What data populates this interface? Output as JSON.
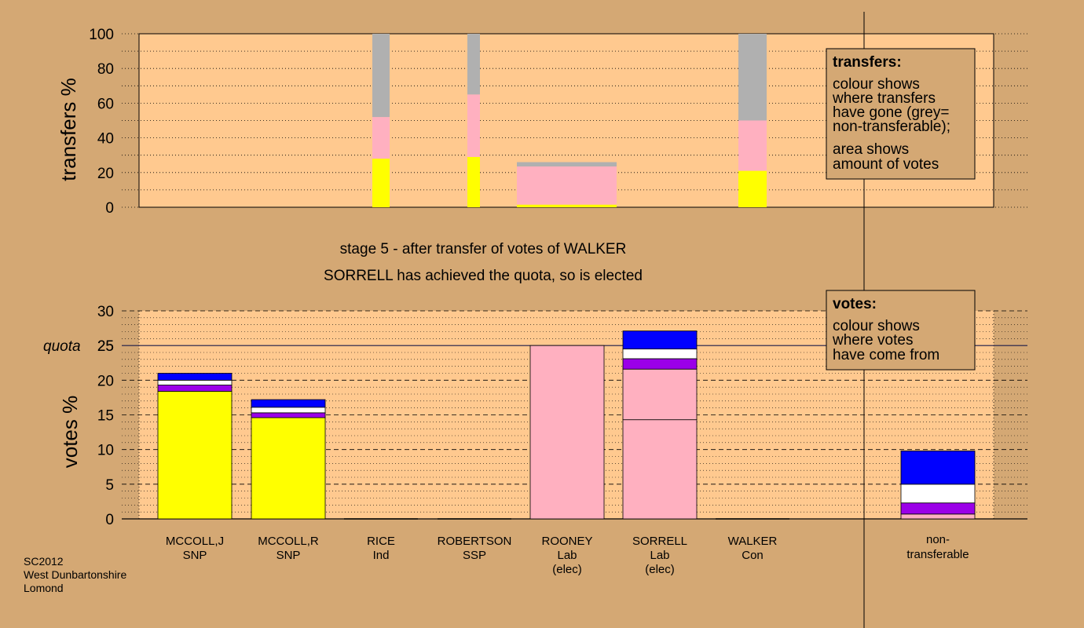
{
  "chart_data": [
    {
      "type": "bar",
      "stacked": true,
      "ylabel": "transfers %",
      "ylim": [
        0,
        100
      ],
      "yticks": [
        0,
        20,
        40,
        60,
        80,
        100
      ],
      "grid": "dotted",
      "note": "bar widths show amount of votes",
      "bars": [
        {
          "stack": [
            {
              "color": "#FFFF00",
              "value": 28
            },
            {
              "color": "#FFB0C0",
              "value": 24
            },
            {
              "color": "#B0B0B0",
              "value": 48
            }
          ]
        },
        {
          "stack": [
            {
              "color": "#FFFF00",
              "value": 29
            },
            {
              "color": "#FFB0C0",
              "value": 36
            },
            {
              "color": "#B0B0B0",
              "value": 35
            }
          ]
        },
        {
          "stack": [
            {
              "color": "#FFFF00",
              "value": 1.5
            },
            {
              "color": "#FFB0C0",
              "value": 22
            },
            {
              "color": "#B0B0B0",
              "value": 2.5
            }
          ]
        },
        {
          "stack": [
            {
              "color": "#FFFF00",
              "value": 21
            },
            {
              "color": "#FFB0C0",
              "value": 29
            },
            {
              "color": "#B0B0B0",
              "value": 50
            }
          ]
        }
      ]
    },
    {
      "type": "bar",
      "stacked": true,
      "ylabel": "votes %",
      "ylim": [
        0,
        30
      ],
      "yticks": [
        0,
        5,
        10,
        15,
        20,
        25,
        30
      ],
      "quota": 25,
      "quota_label": "quota",
      "grid": "dashed",
      "categories": [
        {
          "line1": "MCCOLL,J",
          "line2": "SNP",
          "line3": ""
        },
        {
          "line1": "MCCOLL,R",
          "line2": "SNP",
          "line3": ""
        },
        {
          "line1": "RICE",
          "line2": "Ind",
          "line3": ""
        },
        {
          "line1": "ROBERTSON",
          "line2": "SSP",
          "line3": ""
        },
        {
          "line1": "ROONEY",
          "line2": "Lab",
          "line3": "(elec)"
        },
        {
          "line1": "SORRELL",
          "line2": "Lab",
          "line3": "(elec)"
        },
        {
          "line1": "WALKER",
          "line2": "Con",
          "line3": ""
        }
      ],
      "bars": [
        {
          "stack": [
            {
              "color": "#FFFF00",
              "value": 18.4
            },
            {
              "color": "#9B00E8",
              "value": 0.9
            },
            {
              "color": "#FFFFFF",
              "value": 0.7
            },
            {
              "color": "#0000FF",
              "value": 1.0
            }
          ]
        },
        {
          "stack": [
            {
              "color": "#FFFF00",
              "value": 14.6
            },
            {
              "color": "#9B00E8",
              "value": 0.7
            },
            {
              "color": "#FFFFFF",
              "value": 0.8
            },
            {
              "color": "#0000FF",
              "value": 1.1
            }
          ]
        },
        {
          "stack": []
        },
        {
          "stack": []
        },
        {
          "stack": [
            {
              "color": "#FFB0C0",
              "value": 25.0
            }
          ]
        },
        {
          "stack": [
            {
              "color": "#FFB0C0",
              "value": 14.3
            },
            {
              "color": "#FFB0C0",
              "value": 7.3
            },
            {
              "color": "#9B00E8",
              "value": 1.5
            },
            {
              "color": "#FFFFFF",
              "value": 1.4
            },
            {
              "color": "#0000FF",
              "value": 2.6
            }
          ]
        },
        {
          "stack": []
        }
      ],
      "nontransferable": {
        "line1": "non-",
        "line2": "transferable",
        "stack": [
          {
            "color": "#FFB0C0",
            "value": 0.7
          },
          {
            "color": "#9B00E8",
            "value": 1.6
          },
          {
            "color": "#FFFFFF",
            "value": 2.7
          },
          {
            "color": "#0000FF",
            "value": 4.8
          }
        ]
      }
    }
  ],
  "stage_title": "stage 5 - after transfer of votes of WALKER",
  "stage_subtitle": "SORRELL has achieved the quota, so is elected",
  "legend_transfers": {
    "title": "transfers:",
    "lines1": [
      "colour shows",
      "where transfers",
      "have gone (grey=",
      "non-transferable);"
    ],
    "lines2": [
      "area shows",
      "amount of votes"
    ]
  },
  "legend_votes": {
    "title": "votes:",
    "lines": [
      "colour shows",
      "where votes",
      "have come from"
    ]
  },
  "footer": [
    "SC2012",
    "West Dunbartonshire",
    "Lomond"
  ],
  "colors": {
    "background": "#D4A874",
    "plot": "#FFC98F",
    "snp": "#FFFF00",
    "lab": "#FFB0C0",
    "nontransferable": "#B0B0B0"
  }
}
